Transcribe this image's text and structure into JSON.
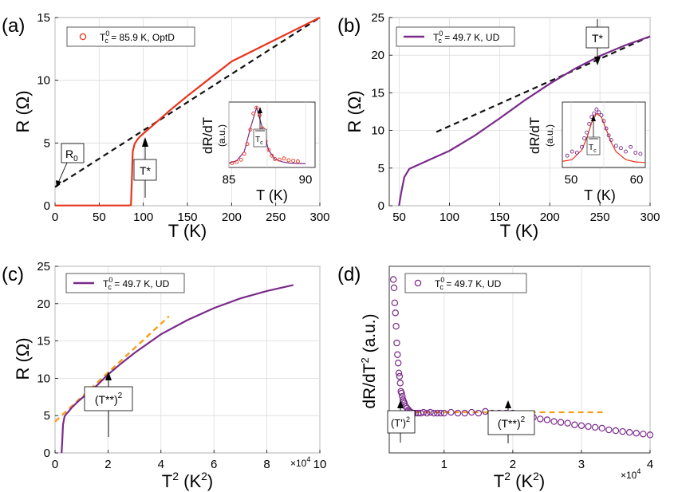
{
  "colors": {
    "optd": "#e8341c",
    "ud": "#7a2a8a",
    "fit_black": "#111111",
    "fit_orange": "#f5a01a",
    "grid": "#dcdcdc"
  },
  "panels": {
    "a": {
      "label": "(a)",
      "legend": {
        "prefix": "T",
        "sup": "0",
        "sub": "c",
        "suffix": " = 85.9 K, OptD"
      },
      "xlabel": "T (K)",
      "ylabel": "R (Ω)",
      "xlim": [
        0,
        300
      ],
      "ylim": [
        0,
        15
      ],
      "xticks": [
        "0",
        "50",
        "100",
        "150",
        "200",
        "250",
        "300"
      ],
      "yticks": [
        "0",
        "5",
        "10",
        "15"
      ],
      "annotations": {
        "r0": "R",
        "r0_sub": "0",
        "tstar": "T*"
      },
      "inset": {
        "ylabel": "dR/dT",
        "yunit": "(a.u.)",
        "xlabel": "T (K)",
        "xticks": [
          "85",
          "90"
        ],
        "tc_label": "T",
        "tc_sub": "c"
      }
    },
    "b": {
      "label": "(b)",
      "legend": {
        "prefix": "T",
        "sup": "0",
        "sub": "c",
        "suffix": " = 49.7 K, UD"
      },
      "xlabel": "T (K)",
      "ylabel": "R (Ω)",
      "xlim": [
        40,
        300
      ],
      "ylim": [
        0,
        25
      ],
      "xticks": [
        "50",
        "100",
        "150",
        "200",
        "250",
        "300"
      ],
      "yticks": [
        "0",
        "5",
        "10",
        "15",
        "20",
        "25"
      ],
      "annotations": {
        "tstar": "T*"
      },
      "inset": {
        "ylabel": "dR/dT",
        "yunit": "(a.u.)",
        "xlabel": "T (K)",
        "xticks": [
          "50",
          "60"
        ],
        "tc_label": "T",
        "tc_sub": "c"
      }
    },
    "c": {
      "label": "(c)",
      "legend": {
        "prefix": "T",
        "sup": "0",
        "sub": "c",
        "suffix": " = 49.7 K, UD"
      },
      "xlabel": "T",
      "xlabel_sup": "2",
      "xlabel_unit": " (K",
      "xlabel_unit_sup": "2",
      "xlabel_close": ")",
      "ylabel": "R (Ω)",
      "xlim": [
        0,
        10
      ],
      "ylim": [
        0,
        25
      ],
      "xticks": [
        "0",
        "2",
        "4",
        "6",
        "8",
        "10"
      ],
      "yticks": [
        "0",
        "5",
        "10",
        "15",
        "20",
        "25"
      ],
      "multiplier": "×10",
      "multiplier_exp": "4",
      "annotations": {
        "tstarstar": "(T**)",
        "tstarstar_sup": "2"
      }
    },
    "d": {
      "label": "(d)",
      "legend": {
        "prefix": "T",
        "sup": "0",
        "sub": "c",
        "suffix": " = 49.7 K, UD"
      },
      "xlabel": "T",
      "xlabel_sup": "2",
      "xlabel_unit": " (K",
      "xlabel_unit_sup": "2",
      "xlabel_close": ")",
      "ylabel": "dR/dT",
      "ylabel_sup": "2",
      "ylabel_unit": " (a.u.)",
      "xlim": [
        0.2,
        4
      ],
      "xticks": [
        "1",
        "2",
        "3",
        "4"
      ],
      "multiplier": "×10",
      "multiplier_exp": "4",
      "annotations": {
        "tprime": "(T')",
        "tprime_sup": "2",
        "tstarstar": "(T**)",
        "tstarstar_sup": "2"
      }
    }
  },
  "chart_data": [
    {
      "type": "line",
      "panel": "a",
      "title": "",
      "xlabel": "T (K)",
      "ylabel": "R (Ω)",
      "xlim": [
        0,
        300
      ],
      "ylim": [
        0,
        15
      ],
      "series": [
        {
          "name": "Tc0 = 85.9 K, OptD",
          "style": "solid",
          "x": [
            0,
            84,
            86,
            87,
            88,
            90,
            93,
            96,
            100,
            110,
            130,
            150,
            200,
            250,
            300
          ],
          "y": [
            0.02,
            0.02,
            0.05,
            2.0,
            4.3,
            4.9,
            5.25,
            5.5,
            5.75,
            6.35,
            7.6,
            8.75,
            11.5,
            13.25,
            15.0
          ]
        },
        {
          "name": "linear fit",
          "style": "dashed",
          "x": [
            0,
            300
          ],
          "y": [
            1.5,
            15.0
          ]
        }
      ],
      "inset": {
        "xlim": [
          85,
          90
        ],
        "series": [
          {
            "name": "dR/dT points",
            "style": "markers",
            "x": [
              85.2,
              85.5,
              85.8,
              86.0,
              86.2,
              86.4,
              86.6,
              86.8,
              87.0,
              87.2,
              87.4,
              87.6,
              87.8,
              88.0,
              88.3,
              88.6,
              88.9,
              89.2,
              89.5
            ],
            "y": [
              0.02,
              0.04,
              0.08,
              0.18,
              0.35,
              0.6,
              0.88,
              0.98,
              0.85,
              0.62,
              0.4,
              0.25,
              0.15,
              0.09,
              0.08,
              0.1,
              0.07,
              0.06,
              0.05
            ]
          },
          {
            "name": "dR/dT fit",
            "style": "solid",
            "x": [
              85.0,
              85.5,
              86.0,
              86.4,
              86.8,
              87.2,
              87.6,
              88.0,
              88.5,
              89.0,
              90.0
            ],
            "y": [
              0.02,
              0.06,
              0.22,
              0.62,
              0.98,
              0.62,
              0.24,
              0.09,
              0.04,
              0.02,
              0.01
            ]
          }
        ]
      }
    },
    {
      "type": "line",
      "panel": "b",
      "title": "",
      "xlabel": "T (K)",
      "ylabel": "R (Ω)",
      "xlim": [
        40,
        300
      ],
      "ylim": [
        0,
        25
      ],
      "series": [
        {
          "name": "Tc0 = 49.7 K, UD",
          "style": "solid",
          "x": [
            49.7,
            50,
            52,
            55,
            60,
            65,
            70,
            80,
            100,
            125,
            150,
            175,
            200,
            225,
            250,
            275,
            300
          ],
          "y": [
            0.0,
            0.2,
            1.8,
            3.8,
            4.9,
            5.2,
            5.5,
            6.1,
            7.3,
            9.3,
            11.6,
            14.0,
            16.2,
            18.2,
            19.9,
            21.3,
            22.5
          ]
        },
        {
          "name": "linear fit",
          "style": "dashed",
          "x": [
            87,
            300
          ],
          "y": [
            9.8,
            22.5
          ]
        }
      ],
      "inset": {
        "xlim": [
          45,
          62
        ],
        "series": [
          {
            "name": "dR/dT points",
            "style": "markers",
            "x": [
              46,
              47,
              48,
              49,
              49.5,
              50,
              50.5,
              51,
              51.5,
              52,
              52.5,
              53,
              53.5,
              54,
              54.5,
              55,
              56,
              57,
              58,
              59,
              60,
              61
            ],
            "y": [
              0.15,
              0.22,
              0.2,
              0.3,
              0.45,
              0.55,
              0.7,
              0.82,
              0.88,
              0.95,
              0.9,
              0.85,
              0.75,
              0.62,
              0.5,
              0.42,
              0.32,
              0.28,
              0.22,
              0.3,
              0.2,
              0.18
            ]
          },
          {
            "name": "dR/dT fit",
            "style": "solid",
            "x": [
              45,
              47,
              49,
              50,
              51,
              52,
              53,
              54,
              55,
              56,
              58,
              60,
              62
            ],
            "y": [
              0.05,
              0.08,
              0.25,
              0.45,
              0.72,
              0.88,
              0.82,
              0.6,
              0.38,
              0.22,
              0.08,
              0.04,
              0.03
            ]
          }
        ]
      }
    },
    {
      "type": "line",
      "panel": "c",
      "title": "",
      "xlabel": "T^2 (K^2) ×10^4",
      "ylabel": "R (Ω)",
      "xlim": [
        0,
        10
      ],
      "ylim": [
        0,
        25
      ],
      "series": [
        {
          "name": "Tc0 = 49.7 K, UD",
          "style": "solid",
          "x": [
            0.247,
            0.27,
            0.3,
            0.36,
            0.42,
            0.5,
            0.64,
            0.9,
            1.2,
            1.6,
            2.0,
            2.5,
            3.0,
            4.0,
            5.0,
            6.0,
            7.0,
            8.0,
            9.0
          ],
          "y": [
            0.0,
            1.5,
            3.8,
            4.9,
            5.2,
            5.5,
            6.1,
            7.0,
            7.9,
            9.1,
            10.5,
            12.0,
            13.4,
            15.9,
            17.8,
            19.4,
            20.7,
            21.7,
            22.5
          ]
        },
        {
          "name": "linear fit",
          "style": "dashed",
          "x": [
            0,
            4.3
          ],
          "y": [
            4.2,
            18.3
          ]
        }
      ]
    },
    {
      "type": "scatter",
      "panel": "d",
      "title": "",
      "xlabel": "T^2 (K^2) ×10^4",
      "ylabel": "dR/dT^2 (a.u.)",
      "xlim": [
        0.2,
        4
      ],
      "series": [
        {
          "name": "Tc0 = 49.7 K, UD",
          "style": "markers",
          "x": [
            0.26,
            0.27,
            0.28,
            0.29,
            0.3,
            0.31,
            0.32,
            0.33,
            0.34,
            0.35,
            0.36,
            0.37,
            0.38,
            0.39,
            0.4,
            0.41,
            0.42,
            0.44,
            0.46,
            0.48,
            0.5,
            0.52,
            0.55,
            0.58,
            0.62,
            0.66,
            0.7,
            0.75,
            0.8,
            0.85,
            0.9,
            0.95,
            1.0,
            1.1,
            1.2,
            1.3,
            1.4,
            1.5,
            1.6,
            1.7,
            1.8,
            1.9,
            2.0,
            2.1,
            2.2,
            2.3,
            2.4,
            2.5,
            2.6,
            2.7,
            2.8,
            2.9,
            3.0,
            3.1,
            3.2,
            3.3,
            3.4,
            3.5,
            3.6,
            3.7,
            3.8,
            3.9,
            4.0
          ],
          "y": [
            1.0,
            0.95,
            0.86,
            0.8,
            0.72,
            0.62,
            0.55,
            0.5,
            0.44,
            0.42,
            0.38,
            0.33,
            0.32,
            0.3,
            0.28,
            0.27,
            0.26,
            0.24,
            0.23,
            0.22,
            0.21,
            0.205,
            0.2,
            0.2,
            0.2,
            0.2,
            0.205,
            0.2,
            0.205,
            0.2,
            0.2,
            0.2,
            0.2,
            0.205,
            0.2,
            0.2,
            0.205,
            0.2,
            0.21,
            0.2,
            0.2,
            0.2,
            0.2,
            0.19,
            0.185,
            0.175,
            0.165,
            0.16,
            0.15,
            0.145,
            0.14,
            0.13,
            0.125,
            0.12,
            0.115,
            0.11,
            0.1,
            0.095,
            0.09,
            0.085,
            0.08,
            0.075,
            0.07
          ]
        },
        {
          "name": "constant fit",
          "style": "dashed",
          "x": [
            0.3,
            3.35
          ],
          "y": [
            0.205,
            0.205
          ]
        }
      ]
    }
  ]
}
